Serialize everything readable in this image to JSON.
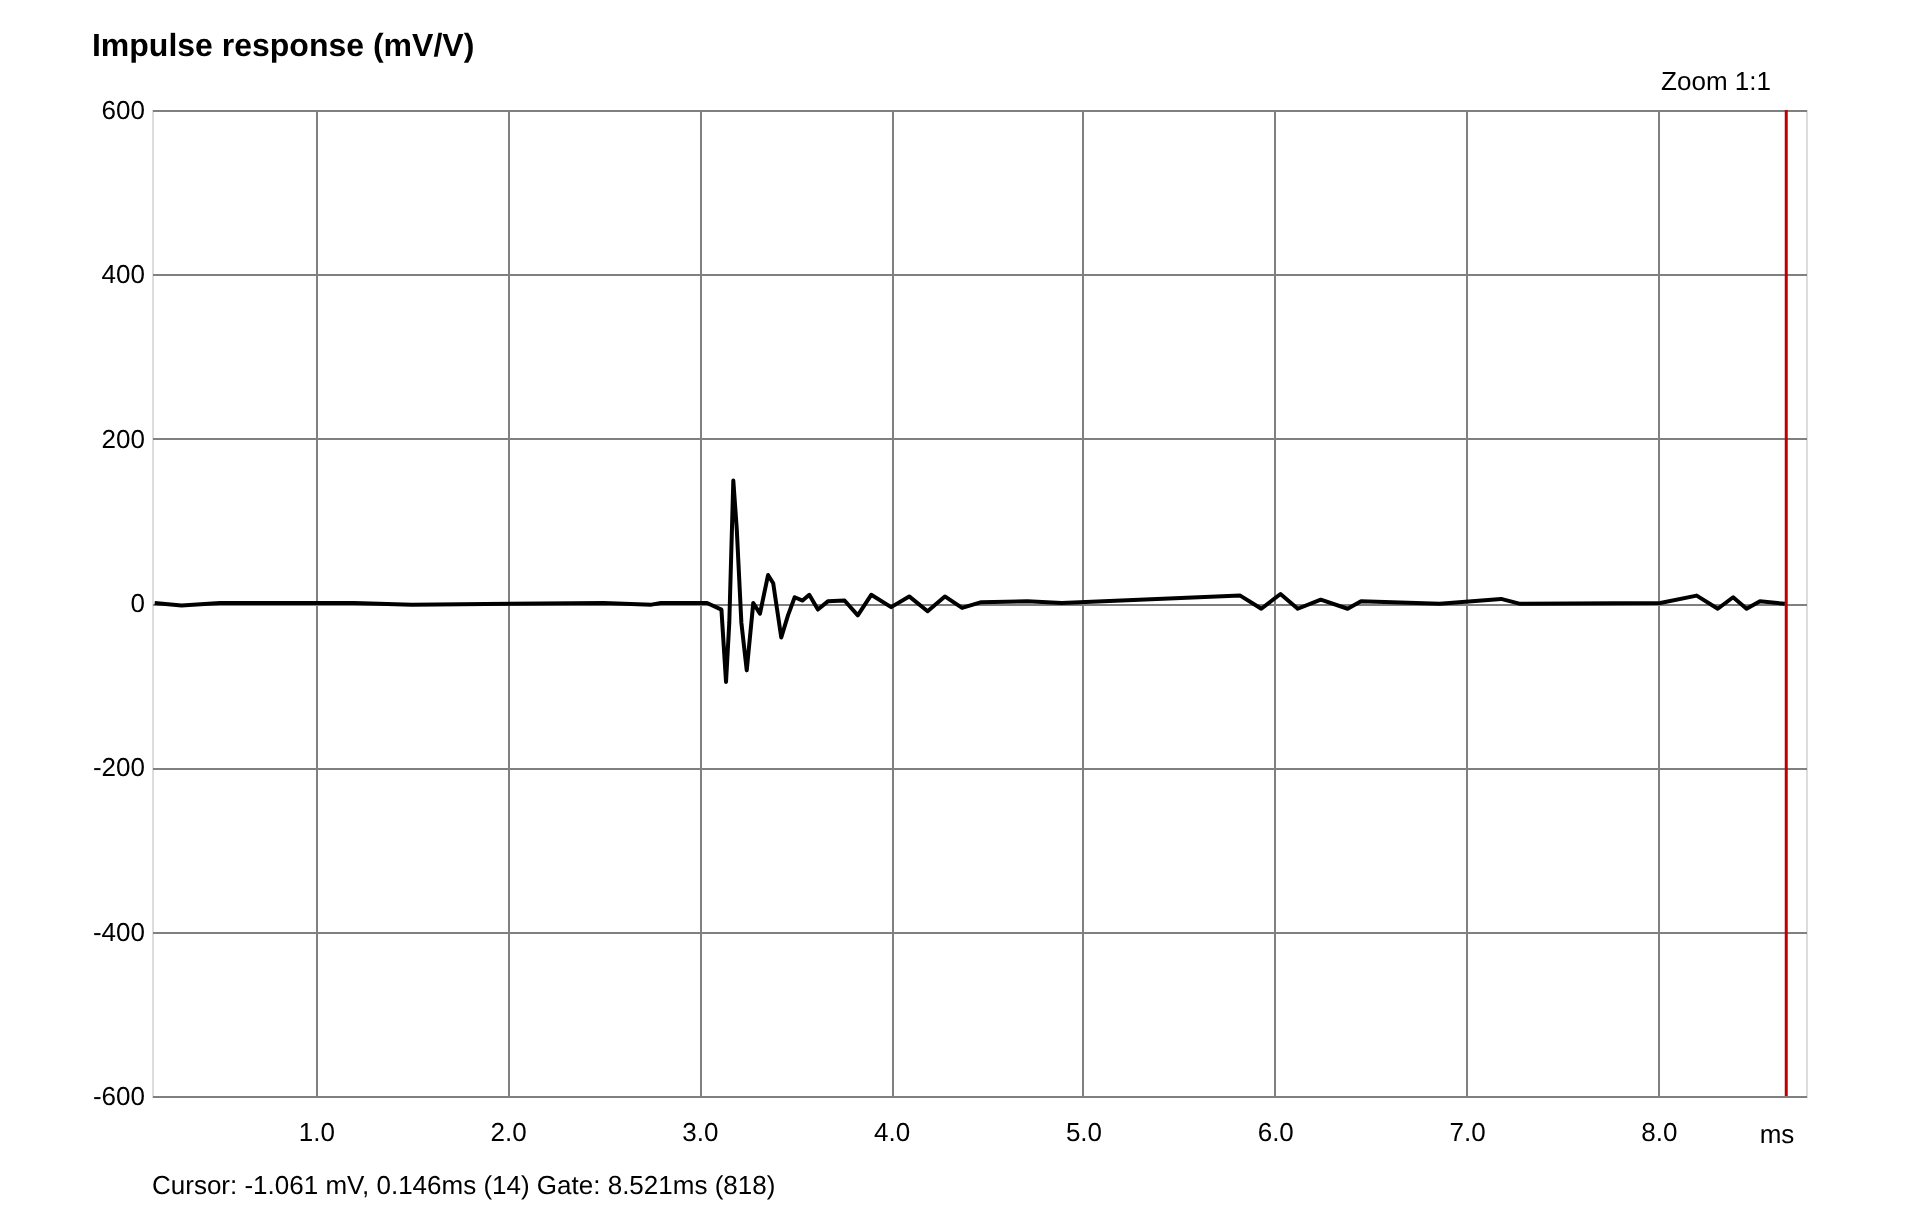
{
  "chart_data": {
    "type": "line",
    "title": "Impulse response (mV/V)",
    "xlabel": "ms",
    "annotations": [
      "Zoom 1:1",
      "Cursor: -1.061 mV, 0.146ms (14)  Gate: 8.521ms (818)"
    ],
    "x": [
      0.16,
      0.3,
      0.5,
      1.2,
      1.5,
      2.5,
      2.75,
      2.8,
      3.01,
      3.04,
      3.115,
      3.139,
      3.156,
      3.177,
      3.195,
      3.219,
      3.247,
      3.281,
      3.316,
      3.358,
      3.385,
      3.427,
      3.462,
      3.497,
      3.538,
      3.573,
      3.618,
      3.67,
      3.757,
      3.826,
      3.896,
      4.0,
      4.094,
      4.19,
      4.28,
      4.37,
      4.47,
      4.71,
      4.89,
      5.82,
      5.93,
      6.03,
      6.12,
      6.24,
      6.38,
      6.45,
      6.86,
      7.18,
      7.28,
      8.01,
      8.2,
      8.31,
      8.39,
      8.46,
      8.53,
      8.66
    ],
    "series": [
      {
        "color": "#000000",
        "values": [
          0,
          -3,
          0,
          0,
          -2,
          0,
          -2,
          0,
          0,
          0,
          -8,
          -96,
          -24,
          149,
          90,
          -24,
          -82,
          0,
          -13,
          34,
          24,
          -42,
          -15,
          7,
          3,
          10,
          -8,
          2,
          3,
          -15,
          10,
          -5,
          8,
          -10,
          8,
          -6,
          1,
          2,
          0,
          9,
          -7,
          11,
          -7,
          4,
          -7,
          2,
          -1,
          5,
          -1,
          0,
          9,
          -7,
          7,
          -7,
          2,
          -1
        ]
      }
    ],
    "xlim": [
      0.146,
      8.77
    ],
    "ylim": [
      -600,
      600
    ],
    "xticks": [
      {
        "value": 1,
        "label": "1.0"
      },
      {
        "value": 2,
        "label": "2.0"
      },
      {
        "value": 3,
        "label": "3.0"
      },
      {
        "value": 4,
        "label": "4.0"
      },
      {
        "value": 5,
        "label": "5.0"
      },
      {
        "value": 6,
        "label": "6.0"
      },
      {
        "value": 7,
        "label": "7.0"
      },
      {
        "value": 8,
        "label": "8.0"
      }
    ],
    "yticks": [
      -600,
      -400,
      -200,
      0,
      200,
      400,
      600
    ],
    "ref_lines": [
      {
        "axis": "x",
        "value": 8.667,
        "color": "#c00000"
      }
    ],
    "grid": true,
    "marker": "none",
    "line_style": "solid"
  }
}
